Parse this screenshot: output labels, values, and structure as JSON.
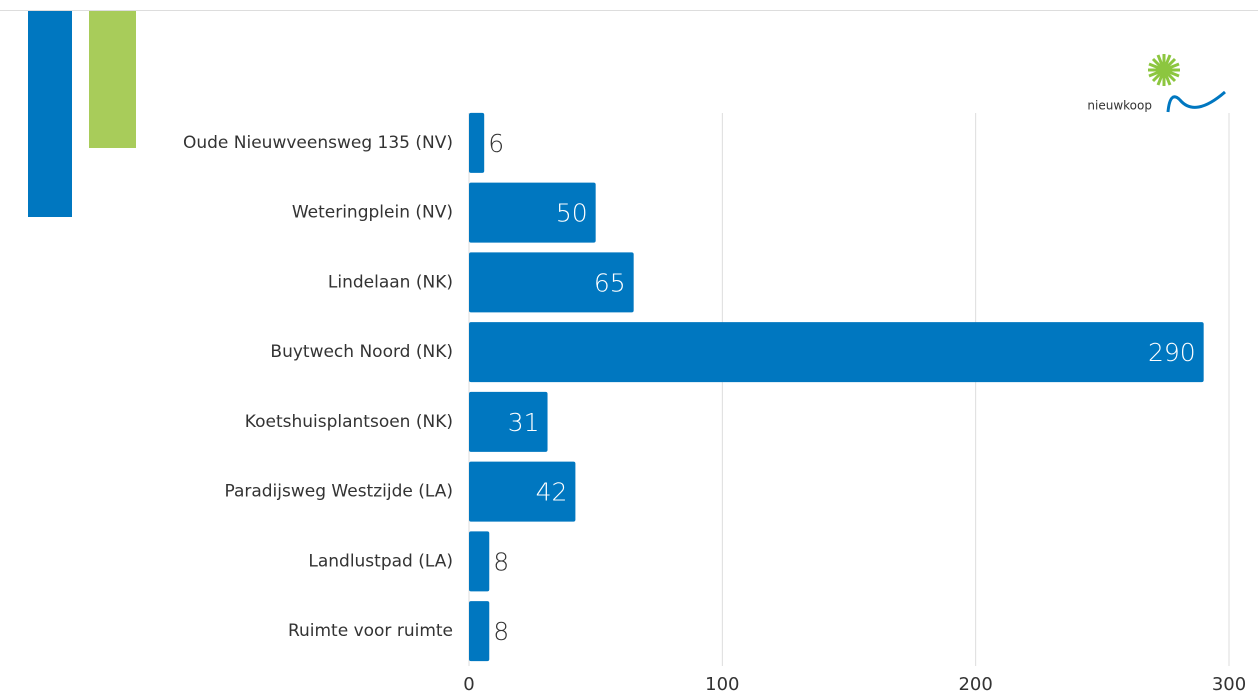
{
  "logo": "nieuwkoop",
  "chart_data": {
    "type": "bar",
    "orientation": "horizontal",
    "categories": [
      "Oude Nieuwveensweg 135 (NV)",
      "Weteringplein (NV)",
      "Lindelaan (NK)",
      "Buytwech Noord (NK)",
      "Koetshuisplantsoen (NK)",
      "Paradijsweg Westzijde (LA)",
      "Landlustpad (LA)",
      "Ruimte voor ruimte"
    ],
    "values": [
      6,
      50,
      65,
      290,
      31,
      42,
      8,
      8
    ],
    "color": "#0077c0",
    "xlim": [
      0,
      300
    ],
    "xticks": [
      0,
      100,
      200,
      300
    ],
    "grid": true
  }
}
